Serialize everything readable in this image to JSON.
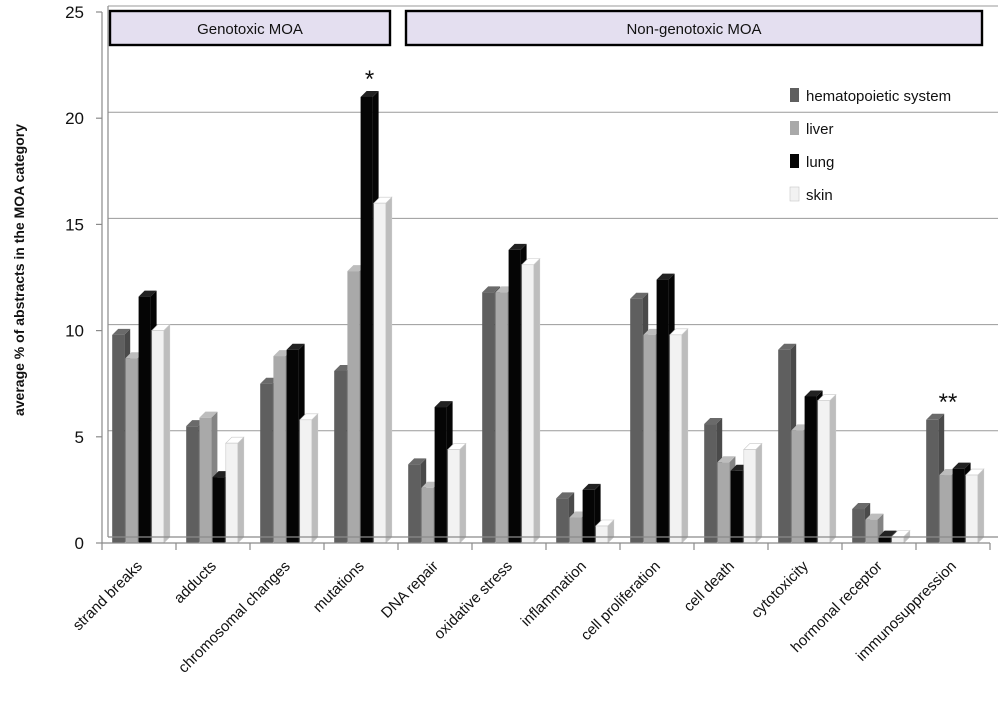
{
  "chart_data": {
    "type": "bar",
    "title": "",
    "xlabel": "",
    "ylabel": "average % of abstracts in the MOA category",
    "ylim": [
      0,
      25
    ],
    "yticks": [
      0,
      5,
      10,
      15,
      20,
      25
    ],
    "grid": true,
    "legend_position": "top-right",
    "categories": [
      "strand breaks",
      "adducts",
      "chromosomal changes",
      "mutations",
      "DNA repair",
      "oxidative stress",
      "inflammation",
      "cell proliferation",
      "cell death",
      "cytotoxicity",
      "hormonal receptor",
      "immunosuppression"
    ],
    "series": [
      {
        "name": "hematopoietic system",
        "color": "#5f5f5f",
        "values": [
          9.8,
          5.5,
          7.5,
          8.1,
          3.7,
          11.8,
          2.1,
          11.5,
          5.6,
          9.1,
          1.6,
          5.8
        ]
      },
      {
        "name": "liver",
        "color": "#a9a9a9",
        "values": [
          8.7,
          5.9,
          8.8,
          12.8,
          2.6,
          11.8,
          1.2,
          9.8,
          3.8,
          5.3,
          1.1,
          3.2
        ]
      },
      {
        "name": "lung",
        "color": "#050505",
        "values": [
          11.6,
          3.1,
          9.1,
          21.0,
          6.4,
          13.8,
          2.5,
          12.4,
          3.4,
          6.9,
          0.3,
          3.5
        ]
      },
      {
        "name": "skin",
        "color": "#f2f2f2",
        "values": [
          10.0,
          4.7,
          5.8,
          16.0,
          4.4,
          13.1,
          0.8,
          9.8,
          4.4,
          6.7,
          0.3,
          3.2
        ]
      }
    ],
    "groups": [
      {
        "label": "Genotoxic MOA",
        "from": 0,
        "to": 3
      },
      {
        "label": "Non-genotoxic MOA",
        "from": 4,
        "to": 11
      }
    ],
    "annotations": [
      {
        "text": "*",
        "category": 3,
        "series": 2
      },
      {
        "text": "**",
        "category": 11,
        "series": 0
      }
    ]
  }
}
